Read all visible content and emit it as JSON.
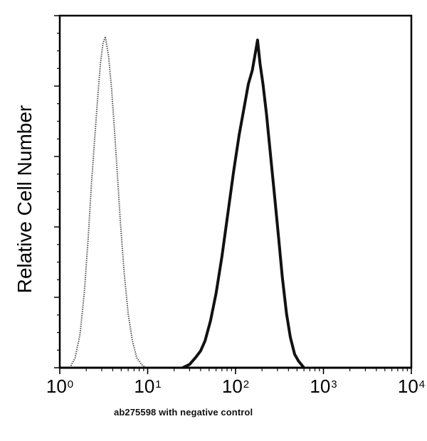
{
  "chart_data": {
    "type": "line",
    "title": "",
    "xlabel": "ab275598 with negative control",
    "ylabel": "Relative Cell Number",
    "xscale": "log",
    "xlim": [
      1,
      10000
    ],
    "ylim": [
      0,
      100
    ],
    "x_ticks": [
      {
        "base": "10",
        "exp": "0",
        "value": 1
      },
      {
        "base": "10",
        "exp": "1",
        "value": 10
      },
      {
        "base": "10",
        "exp": "2",
        "value": 100
      },
      {
        "base": "10",
        "exp": "3",
        "value": 1000
      },
      {
        "base": "10",
        "exp": "4",
        "value": 10000
      }
    ],
    "y_major_ticks": [
      0,
      20,
      40,
      60,
      80,
      100
    ],
    "y_tick_labels_shown": false,
    "grid": false,
    "legend": null,
    "series": [
      {
        "name": "Negative control",
        "style": "dotted",
        "color": "#555555",
        "peak_x": 3.3,
        "points": [
          [
            1.3,
            0
          ],
          [
            1.5,
            3
          ],
          [
            1.7,
            10
          ],
          [
            1.9,
            22
          ],
          [
            2.1,
            38
          ],
          [
            2.3,
            55
          ],
          [
            2.5,
            68
          ],
          [
            2.7,
            80
          ],
          [
            2.9,
            90
          ],
          [
            3.1,
            96
          ],
          [
            3.3,
            98
          ],
          [
            3.6,
            92
          ],
          [
            3.9,
            82
          ],
          [
            4.2,
            70
          ],
          [
            4.5,
            58
          ],
          [
            4.9,
            43
          ],
          [
            5.4,
            28
          ],
          [
            6.0,
            16
          ],
          [
            6.7,
            8
          ],
          [
            7.5,
            3
          ],
          [
            8.5,
            1
          ],
          [
            9.5,
            0
          ]
        ]
      },
      {
        "name": "ab275598",
        "style": "solid",
        "color": "#111111",
        "peak_x": 178,
        "points": [
          [
            25,
            0
          ],
          [
            30,
            1
          ],
          [
            35,
            3
          ],
          [
            40,
            5
          ],
          [
            45,
            8
          ],
          [
            52,
            14
          ],
          [
            60,
            22
          ],
          [
            70,
            33
          ],
          [
            82,
            46
          ],
          [
            95,
            58
          ],
          [
            110,
            69
          ],
          [
            125,
            77
          ],
          [
            140,
            84
          ],
          [
            155,
            88
          ],
          [
            170,
            94
          ],
          [
            178,
            97
          ],
          [
            190,
            90
          ],
          [
            205,
            84
          ],
          [
            225,
            75
          ],
          [
            250,
            63
          ],
          [
            280,
            50
          ],
          [
            310,
            38
          ],
          [
            340,
            27
          ],
          [
            380,
            16
          ],
          [
            420,
            9
          ],
          [
            470,
            4
          ],
          [
            520,
            2
          ],
          [
            600,
            0
          ]
        ]
      }
    ]
  }
}
